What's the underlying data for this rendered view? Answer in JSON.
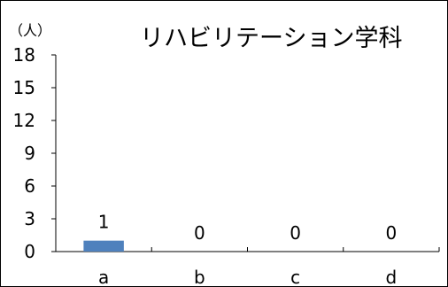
{
  "chart_data": {
    "type": "bar",
    "title": "リハビリテーション学科",
    "unit_label": "（人）",
    "categories": [
      "a",
      "b",
      "c",
      "d"
    ],
    "values": [
      1,
      0,
      0,
      0
    ],
    "ylim": [
      0,
      18
    ],
    "yticks": [
      0,
      3,
      6,
      9,
      12,
      15,
      18
    ],
    "grid": false,
    "legend": "none",
    "bar_color": "#4F81BD"
  }
}
